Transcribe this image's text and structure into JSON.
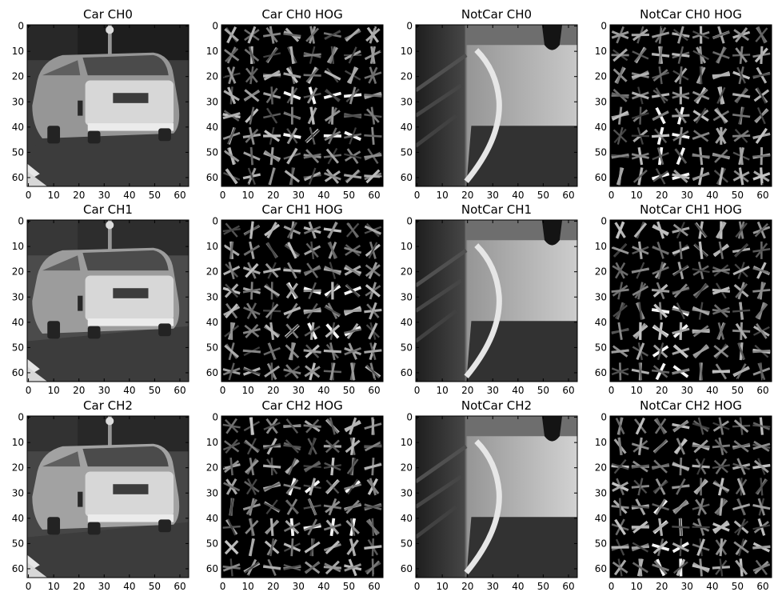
{
  "chart_data": [
    {
      "type": "heatmap",
      "title": "Car CH0",
      "xticks": [
        0,
        10,
        20,
        30,
        40,
        50,
        60
      ],
      "yticks": [
        0,
        10,
        20,
        30,
        40,
        50,
        60
      ],
      "xlim": [
        0,
        63
      ],
      "ylim": [
        63,
        0
      ],
      "colormap": "gray",
      "image": "car",
      "variant": 0
    },
    {
      "type": "heatmap",
      "title": "Car CH0 HOG",
      "xticks": [
        0,
        10,
        20,
        30,
        40,
        50,
        60
      ],
      "yticks": [
        0,
        10,
        20,
        30,
        40,
        50,
        60
      ],
      "xlim": [
        0,
        63
      ],
      "ylim": [
        63,
        0
      ],
      "colormap": "gray",
      "image": "car-hog",
      "variant": 0
    },
    {
      "type": "heatmap",
      "title": "NotCar CH0",
      "xticks": [
        0,
        10,
        20,
        30,
        40,
        50,
        60
      ],
      "yticks": [
        0,
        10,
        20,
        30,
        40,
        50,
        60
      ],
      "xlim": [
        0,
        63
      ],
      "ylim": [
        63,
        0
      ],
      "colormap": "gray",
      "image": "road",
      "variant": 0
    },
    {
      "type": "heatmap",
      "title": "NotCar CH0 HOG",
      "xticks": [
        0,
        10,
        20,
        30,
        40,
        50,
        60
      ],
      "yticks": [
        0,
        10,
        20,
        30,
        40,
        50,
        60
      ],
      "xlim": [
        0,
        63
      ],
      "ylim": [
        63,
        0
      ],
      "colormap": "gray",
      "image": "road-hog",
      "variant": 0
    },
    {
      "type": "heatmap",
      "title": "Car CH1",
      "xticks": [
        0,
        10,
        20,
        30,
        40,
        50,
        60
      ],
      "yticks": [
        0,
        10,
        20,
        30,
        40,
        50,
        60
      ],
      "xlim": [
        0,
        63
      ],
      "ylim": [
        63,
        0
      ],
      "colormap": "gray",
      "image": "car",
      "variant": 1
    },
    {
      "type": "heatmap",
      "title": "Car CH1 HOG",
      "xticks": [
        0,
        10,
        20,
        30,
        40,
        50,
        60
      ],
      "yticks": [
        0,
        10,
        20,
        30,
        40,
        50,
        60
      ],
      "xlim": [
        0,
        63
      ],
      "ylim": [
        63,
        0
      ],
      "colormap": "gray",
      "image": "car-hog",
      "variant": 1
    },
    {
      "type": "heatmap",
      "title": "NotCar CH1",
      "xticks": [
        0,
        10,
        20,
        30,
        40,
        50,
        60
      ],
      "yticks": [
        0,
        10,
        20,
        30,
        40,
        50,
        60
      ],
      "xlim": [
        0,
        63
      ],
      "ylim": [
        63,
        0
      ],
      "colormap": "gray",
      "image": "road",
      "variant": 1
    },
    {
      "type": "heatmap",
      "title": "NotCar CH1 HOG",
      "xticks": [
        0,
        10,
        20,
        30,
        40,
        50,
        60
      ],
      "yticks": [
        0,
        10,
        20,
        30,
        40,
        50,
        60
      ],
      "xlim": [
        0,
        63
      ],
      "ylim": [
        63,
        0
      ],
      "colormap": "gray",
      "image": "road-hog",
      "variant": 1
    },
    {
      "type": "heatmap",
      "title": "Car CH2",
      "xticks": [
        0,
        10,
        20,
        30,
        40,
        50,
        60
      ],
      "yticks": [
        0,
        10,
        20,
        30,
        40,
        50,
        60
      ],
      "xlim": [
        0,
        63
      ],
      "ylim": [
        63,
        0
      ],
      "colormap": "gray",
      "image": "car",
      "variant": 2
    },
    {
      "type": "heatmap",
      "title": "Car CH2 HOG",
      "xticks": [
        0,
        10,
        20,
        30,
        40,
        50,
        60
      ],
      "yticks": [
        0,
        10,
        20,
        30,
        40,
        50,
        60
      ],
      "xlim": [
        0,
        63
      ],
      "ylim": [
        63,
        0
      ],
      "colormap": "gray",
      "image": "car-hog",
      "variant": 2
    },
    {
      "type": "heatmap",
      "title": "NotCar CH2",
      "xticks": [
        0,
        10,
        20,
        30,
        40,
        50,
        60
      ],
      "yticks": [
        0,
        10,
        20,
        30,
        40,
        50,
        60
      ],
      "xlim": [
        0,
        63
      ],
      "ylim": [
        63,
        0
      ],
      "colormap": "gray",
      "image": "road",
      "variant": 2
    },
    {
      "type": "heatmap",
      "title": "NotCar CH2 HOG",
      "xticks": [
        0,
        10,
        20,
        30,
        40,
        50,
        60
      ],
      "yticks": [
        0,
        10,
        20,
        30,
        40,
        50,
        60
      ],
      "xlim": [
        0,
        63
      ],
      "ylim": [
        63,
        0
      ],
      "colormap": "gray",
      "image": "road-hog",
      "variant": 2
    }
  ]
}
